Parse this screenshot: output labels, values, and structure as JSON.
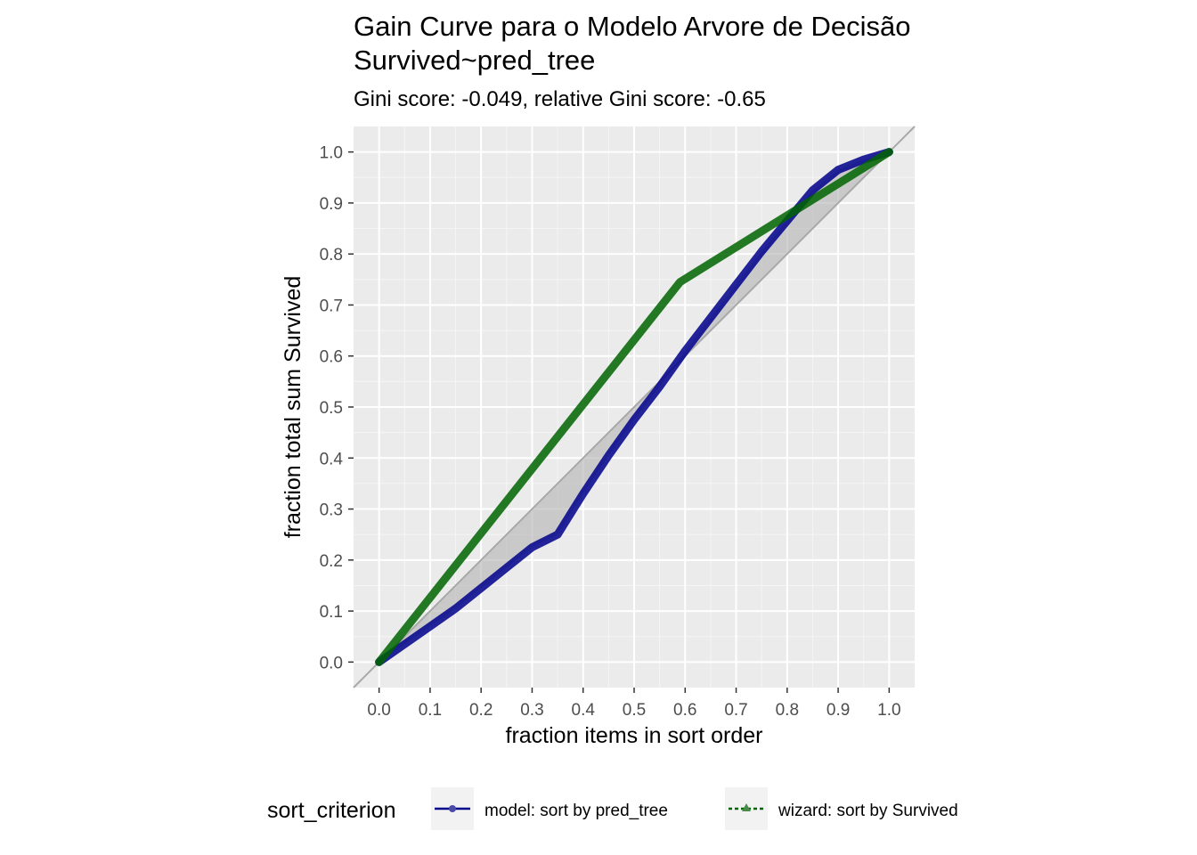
{
  "chart_data": {
    "type": "line",
    "title_line1": "Gain Curve para o Modelo Arvore de Decisão",
    "title_line2": "Survived~pred_tree",
    "subtitle": "Gini score: -0.049, relative Gini score: -0.65",
    "xlabel": "fraction items in sort order",
    "ylabel": "fraction total sum Survived",
    "xlim": [
      -0.05,
      1.05
    ],
    "ylim": [
      -0.05,
      1.05
    ],
    "x_ticks": [
      "0.0",
      "0.1",
      "0.2",
      "0.3",
      "0.4",
      "0.5",
      "0.6",
      "0.7",
      "0.8",
      "0.9",
      "1.0"
    ],
    "y_ticks": [
      "0.0",
      "0.1",
      "0.2",
      "0.3",
      "0.4",
      "0.5",
      "0.6",
      "0.7",
      "0.8",
      "0.9",
      "1.0"
    ],
    "grid": true,
    "reference_line": "diagonal",
    "legend": {
      "title": "sort_criterion",
      "position": "bottom",
      "entries": [
        "model: sort by pred_tree",
        "wizard: sort by Survived"
      ]
    },
    "series": [
      {
        "name": "model: sort by pred_tree",
        "color": "#00008b",
        "x": [
          0.0,
          0.05,
          0.1,
          0.15,
          0.2,
          0.25,
          0.3,
          0.35,
          0.4,
          0.45,
          0.5,
          0.55,
          0.6,
          0.65,
          0.7,
          0.75,
          0.8,
          0.85,
          0.9,
          0.95,
          1.0
        ],
        "y": [
          0.0,
          0.035,
          0.07,
          0.105,
          0.145,
          0.185,
          0.225,
          0.25,
          0.33,
          0.405,
          0.475,
          0.54,
          0.61,
          0.675,
          0.74,
          0.805,
          0.865,
          0.925,
          0.965,
          0.985,
          1.0
        ]
      },
      {
        "name": "wizard: sort by Survived",
        "color": "#006400",
        "x": [
          0.0,
          0.59,
          1.0
        ],
        "y": [
          0.0,
          0.745,
          1.0
        ]
      }
    ]
  }
}
